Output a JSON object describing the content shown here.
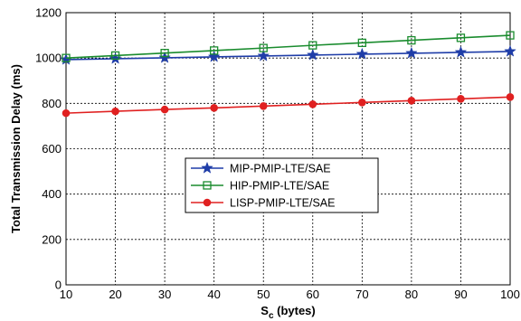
{
  "chart_data": {
    "type": "line",
    "x": [
      10,
      20,
      30,
      40,
      50,
      60,
      70,
      80,
      90,
      100
    ],
    "xlim": [
      10,
      100
    ],
    "ylim": [
      0,
      1200
    ],
    "xticks": [
      "10",
      "20",
      "30",
      "40",
      "50",
      "60",
      "70",
      "80",
      "90",
      "100"
    ],
    "yticks": [
      "0",
      "200",
      "400",
      "600",
      "800",
      "1000",
      "1200"
    ],
    "xlabel": "S",
    "xlabel_sub": "c",
    "xlabel_unit": " (bytes)",
    "ylabel": "Total Transmission Delay (ms)",
    "grid": true,
    "legend_position": "center-left",
    "series": [
      {
        "name": "MIP-PMIP-LTE/SAE",
        "color": "#1f3da8",
        "marker": "star",
        "values": [
          993,
          997,
          1001,
          1005,
          1009,
          1013,
          1017,
          1021,
          1025,
          1029
        ]
      },
      {
        "name": "HIP-PMIP-LTE/SAE",
        "color": "#1a8c2e",
        "marker": "square",
        "values": [
          1000,
          1011,
          1022,
          1033,
          1044,
          1056,
          1067,
          1078,
          1089,
          1100
        ]
      },
      {
        "name": "LISP-PMIP-LTE/SAE",
        "color": "#e02020",
        "marker": "circle",
        "values": [
          757,
          765,
          773,
          780,
          788,
          796,
          804,
          812,
          820,
          828
        ]
      }
    ]
  }
}
